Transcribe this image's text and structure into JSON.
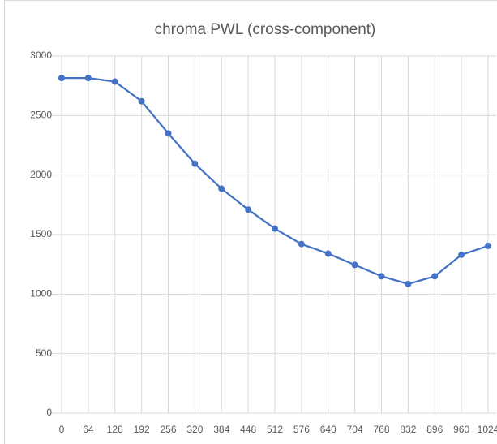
{
  "chart_data": {
    "type": "line",
    "title": "chroma PWL (cross-component)",
    "categories": [
      "0",
      "64",
      "128",
      "192",
      "256",
      "320",
      "384",
      "448",
      "512",
      "576",
      "640",
      "704",
      "768",
      "832",
      "896",
      "960",
      "1024"
    ],
    "series": [
      {
        "name": "chroma PWL",
        "color": "#4472c4",
        "values": [
          2815,
          2815,
          2785,
          2620,
          2350,
          2095,
          1885,
          1710,
          1550,
          1420,
          1340,
          1245,
          1150,
          1085,
          1150,
          1330,
          1405
        ]
      }
    ],
    "ylim": [
      0,
      3000
    ],
    "yticks": [
      0,
      500,
      1000,
      1500,
      2000,
      2500,
      3000
    ],
    "grid": true
  }
}
